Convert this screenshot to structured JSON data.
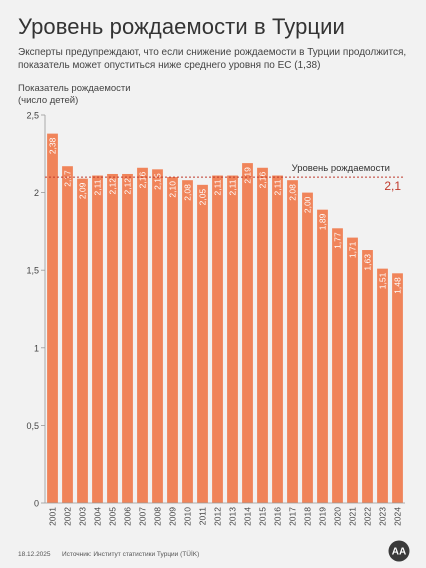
{
  "header": {
    "title": "Уровень рождаемости в Турции",
    "subtitle": "Эксперты предупреждают, что если снижение рождаемости в Турции продолжится, показатель может опуститься ниже среднего уровня по ЕС (1,38)"
  },
  "chart_data": {
    "type": "bar",
    "ylabel_line1": "Показатель рождаемости",
    "ylabel_line2": "(число детей)",
    "categories": [
      "2001",
      "2002",
      "2003",
      "2004",
      "2005",
      "2006",
      "2007",
      "2008",
      "2009",
      "2010",
      "2011",
      "2012",
      "2013",
      "2014",
      "2015",
      "2016",
      "2017",
      "2018",
      "2019",
      "2020",
      "2021",
      "2022",
      "2023",
      "2024"
    ],
    "values": [
      2.38,
      2.17,
      2.09,
      2.11,
      2.12,
      2.12,
      2.16,
      2.15,
      2.1,
      2.08,
      2.05,
      2.11,
      2.11,
      2.19,
      2.16,
      2.11,
      2.08,
      2.0,
      1.89,
      1.77,
      1.71,
      1.63,
      1.51,
      1.48
    ],
    "value_labels": [
      "2,38",
      "2,17",
      "2,09",
      "2,11",
      "2,12",
      "2,12",
      "2,16",
      "2,15",
      "2,10",
      "2,08",
      "2,05",
      "2,11",
      "2,11",
      "2,19",
      "2,16",
      "2,11",
      "2,08",
      "2,00",
      "1,89",
      "1,77",
      "1,71",
      "1,63",
      "1,51",
      "1,48"
    ],
    "ylim": [
      0,
      2.5
    ],
    "yticks": [
      0,
      0.5,
      1,
      1.5,
      2,
      2.5
    ],
    "ytick_labels": [
      "0",
      "0,5",
      "1",
      "1,5",
      "2",
      "2,5"
    ],
    "reference_line": {
      "value": 2.1,
      "label": "Уровень рождаемости",
      "value_label": "2,1"
    },
    "bar_color": "#f0845a",
    "label_color": "#ffffff",
    "reference_color": "#c0392b"
  },
  "footer": {
    "date": "18.12.2025",
    "source": "Источник: Институт статистики Турции (TÜİK)",
    "logo_text": "AA"
  }
}
